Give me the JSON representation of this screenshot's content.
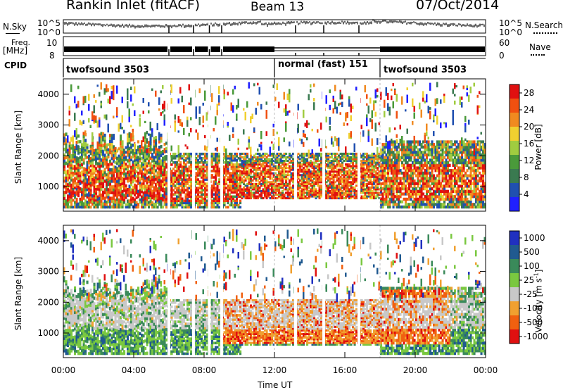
{
  "header": {
    "title": "Rankin Inlet (fitACF)",
    "beam": "Beam 13",
    "date": "07/Oct/2014"
  },
  "top_panels": {
    "nsky_label": "N.Sky",
    "nsky_ticks": [
      "10^5",
      "10^0"
    ],
    "nsearch_label": "N.Search",
    "nsearch_ticks": [
      "10^5",
      "10^0"
    ],
    "freq_label": "Freq.",
    "freq_unit": "[MHz]",
    "freq_ticks": [
      "10",
      "8"
    ],
    "nave_label": "Nave",
    "nave_ticks": [
      "60",
      "0"
    ],
    "cpid_label": "CPID",
    "cpid_segments": [
      {
        "label": "twofsound 3503",
        "start_hour": 0
      },
      {
        "label": "normal (fast) 151",
        "start_hour": 12
      },
      {
        "label": "twofsound 3503",
        "start_hour": 18
      }
    ]
  },
  "colors": {
    "power": [
      "#2020ff",
      "#2050b0",
      "#3a7a50",
      "#4a9a3a",
      "#a0cc40",
      "#f0d030",
      "#f08a20",
      "#f05010",
      "#e01010"
    ],
    "velocity": [
      "#2030c0",
      "#205a90",
      "#3a8a5a",
      "#7ac840",
      "#c8c8c8",
      "#f0a030",
      "#f06010",
      "#e01010"
    ]
  },
  "chart_data": [
    {
      "type": "heatmap",
      "name": "power",
      "ylabel": "Slant Range [km]",
      "xlabel": "Time UT",
      "x_range_hours": [
        0,
        24
      ],
      "ylim": [
        200,
        4500
      ],
      "x_ticks": [
        "00:00",
        "04:00",
        "08:00",
        "12:00",
        "16:00",
        "20:00",
        "00:00"
      ],
      "y_ticks": [
        "1000",
        "2000",
        "3000",
        "4000"
      ],
      "colorbar_label": "Power [dB]",
      "colorbar_ticks": [
        "4",
        "8",
        "12",
        "16",
        "20",
        "24",
        "28"
      ],
      "colorbar_range": [
        0,
        30
      ],
      "gap_hours": [
        6.0,
        7.4,
        8.3,
        9.0,
        13.2,
        14.8,
        16.8
      ]
    },
    {
      "type": "heatmap",
      "name": "velocity",
      "ylabel": "Slant Range [km]",
      "xlabel": "Time UT",
      "x_range_hours": [
        0,
        24
      ],
      "ylim": [
        200,
        4500
      ],
      "x_ticks": [
        "00:00",
        "04:00",
        "08:00",
        "12:00",
        "16:00",
        "20:00",
        "00:00"
      ],
      "y_ticks": [
        "1000",
        "2000",
        "3000",
        "4000"
      ],
      "colorbar_label": "Velocity [m s",
      "colorbar_label_sup": "-1",
      "colorbar_label_end": "]",
      "colorbar_ticks": [
        "1000",
        "500",
        "100",
        "25",
        "-25",
        "-100",
        "-500",
        "-1000"
      ],
      "gap_hours": [
        6.0,
        7.4,
        8.3,
        9.0,
        13.2,
        14.8,
        16.8
      ]
    }
  ]
}
